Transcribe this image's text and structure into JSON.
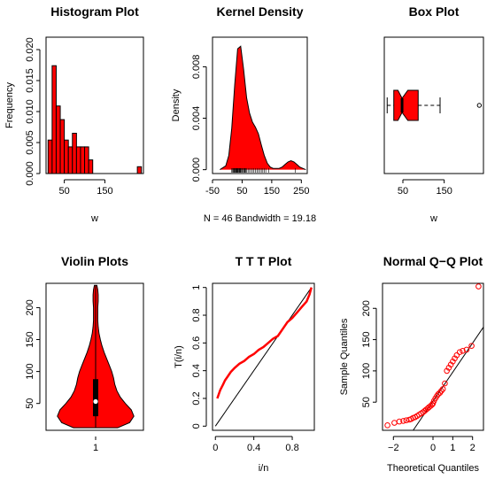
{
  "chart_data": [
    {
      "type": "bar",
      "title": "Histogram Plot",
      "xlabel": "w",
      "ylabel": "Frequency",
      "xlim": [
        5,
        245
      ],
      "ylim": [
        0,
        0.022
      ],
      "x_ticks": [
        50,
        150
      ],
      "y_ticks": [
        0.0,
        0.005,
        0.01,
        0.015,
        0.02
      ],
      "y_tick_labels": [
        "0.000",
        "0.005",
        "0.010",
        "0.015",
        "0.020"
      ],
      "bin_width": 10,
      "bin_starts": [
        10,
        20,
        30,
        40,
        50,
        60,
        70,
        80,
        90,
        100,
        110,
        120,
        130,
        140,
        150,
        160,
        170,
        180,
        190,
        200,
        210,
        220,
        230
      ],
      "values": [
        0.0054,
        0.0174,
        0.0109,
        0.0087,
        0.0054,
        0.0043,
        0.0065,
        0.0043,
        0.0043,
        0.0043,
        0.0022,
        0,
        0,
        0,
        0,
        0,
        0,
        0,
        0,
        0,
        0,
        0,
        0.0011
      ],
      "color": "#ff0000"
    },
    {
      "type": "area",
      "title": "Kernel Density",
      "xlabel": "N = 46   Bandwidth = 19.18",
      "ylabel": "Density",
      "xlim": [
        -50,
        270
      ],
      "ylim": [
        -0.0003,
        0.0103
      ],
      "x_ticks": [
        -50,
        50,
        150,
        250
      ],
      "y_ticks": [
        0,
        0.004,
        0.008
      ],
      "y_tick_labels": [
        "0.000",
        "0.004",
        "0.008"
      ],
      "x": [
        -25,
        -5,
        5,
        15,
        25,
        35,
        45,
        55,
        65,
        75,
        85,
        95,
        105,
        115,
        125,
        135,
        145,
        155,
        165,
        175,
        185,
        195,
        205,
        215,
        225,
        235,
        245,
        255,
        265
      ],
      "y": [
        0,
        0.0003,
        0.0011,
        0.0032,
        0.0066,
        0.0094,
        0.0096,
        0.0078,
        0.0056,
        0.0044,
        0.0037,
        0.0033,
        0.0028,
        0.0019,
        0.0011,
        0.0005,
        0.0002,
        0.0001,
        0.0001,
        0.0001,
        0.0002,
        0.0004,
        0.0006,
        0.0007,
        0.0006,
        0.0004,
        0.0002,
        0.0001,
        0
      ],
      "rug": [
        15,
        18,
        20,
        22,
        24,
        26,
        28,
        30,
        31,
        33,
        35,
        36,
        38,
        40,
        42,
        43,
        45,
        47,
        50,
        52,
        55,
        58,
        60,
        62,
        65,
        70,
        75,
        80,
        85,
        90,
        95,
        100,
        105,
        110,
        115,
        120,
        125,
        130,
        140,
        230
      ],
      "color": "#ff0000"
    },
    {
      "type": "box",
      "title": "Box Plot",
      "xlabel": "w",
      "xlim": [
        5,
        245
      ],
      "x_ticks": [
        50,
        150
      ],
      "whisker_low": 12,
      "q1": 28,
      "median": 48,
      "q3": 87,
      "notch_low": 38,
      "notch_high": 62,
      "whisker_high": 140,
      "outliers": [
        235
      ],
      "color": "#ff0000"
    },
    {
      "type": "violin",
      "title": "Violin Plots",
      "xlabel": "",
      "ylim": [
        8,
        238
      ],
      "x_ticks": [
        "1"
      ],
      "y_ticks": [
        50,
        100,
        150,
        200
      ],
      "profile_y": [
        12,
        20,
        30,
        40,
        50,
        60,
        70,
        80,
        90,
        100,
        110,
        120,
        130,
        140,
        150,
        160,
        170,
        180,
        190,
        200,
        210,
        220,
        228,
        235
      ],
      "profile_halfwidth": [
        0.52,
        0.8,
        0.9,
        0.84,
        0.7,
        0.58,
        0.5,
        0.45,
        0.42,
        0.38,
        0.32,
        0.26,
        0.2,
        0.15,
        0.11,
        0.08,
        0.06,
        0.05,
        0.05,
        0.05,
        0.06,
        0.06,
        0.05,
        0.03
      ],
      "box_q1": 30,
      "box_q3": 88,
      "median": 53,
      "whisker_low": 12,
      "whisker_high": 235,
      "color": "#ff0000"
    },
    {
      "type": "line",
      "title": "T T T Plot",
      "xlabel": "i/n",
      "ylabel": "T(i/n)",
      "xlim": [
        -0.03,
        1.03
      ],
      "ylim": [
        -0.03,
        1.03
      ],
      "x_ticks": [
        0.0,
        0.4,
        0.8
      ],
      "y_ticks": [
        0.0,
        0.2,
        0.4,
        0.6,
        0.8,
        1.0
      ],
      "x": [
        0.02,
        0.05,
        0.08,
        0.1,
        0.13,
        0.16,
        0.2,
        0.25,
        0.3,
        0.35,
        0.4,
        0.45,
        0.5,
        0.55,
        0.6,
        0.65,
        0.7,
        0.75,
        0.8,
        0.85,
        0.9,
        0.95,
        0.98,
        1.0
      ],
      "y": [
        0.2,
        0.26,
        0.3,
        0.33,
        0.36,
        0.39,
        0.42,
        0.45,
        0.47,
        0.5,
        0.52,
        0.55,
        0.57,
        0.6,
        0.63,
        0.65,
        0.7,
        0.75,
        0.78,
        0.82,
        0.86,
        0.9,
        0.95,
        1.0
      ],
      "reference_line": [
        [
          0,
          0
        ],
        [
          1,
          1
        ]
      ],
      "color": "#ff0000"
    },
    {
      "type": "scatter",
      "title": "Normal Q−Q Plot",
      "xlabel": "Theoretical Quantiles",
      "ylabel": "Sample Quantiles",
      "xlim": [
        -2.55,
        2.55
      ],
      "ylim": [
        5,
        240
      ],
      "x_ticks": [
        -2,
        0,
        1,
        2
      ],
      "x_tick_labels": [
        "−2",
        "0",
        "1",
        "2"
      ],
      "y_ticks": [
        50,
        100,
        150,
        200
      ],
      "x": [
        -2.3,
        -1.95,
        -1.7,
        -1.5,
        -1.35,
        -1.2,
        -1.1,
        -1.0,
        -0.9,
        -0.8,
        -0.7,
        -0.6,
        -0.5,
        -0.42,
        -0.35,
        -0.27,
        -0.2,
        -0.12,
        -0.05,
        0.0,
        0.05,
        0.12,
        0.2,
        0.27,
        0.35,
        0.42,
        0.5,
        0.6,
        0.7,
        0.8,
        0.9,
        1.0,
        1.1,
        1.2,
        1.35,
        1.5,
        1.7,
        1.95,
        2.3
      ],
      "y": [
        13,
        17,
        19,
        20,
        21,
        22,
        23,
        25,
        26,
        28,
        30,
        32,
        34,
        36,
        38,
        40,
        42,
        44,
        46,
        48,
        52,
        56,
        60,
        63,
        65,
        68,
        71,
        80,
        100,
        105,
        110,
        115,
        120,
        125,
        130,
        132,
        134,
        140,
        235
      ],
      "reference_line": [
        [
          -1.0,
          5
        ],
        [
          2.55,
          170
        ]
      ],
      "color": "#ff0000"
    }
  ]
}
